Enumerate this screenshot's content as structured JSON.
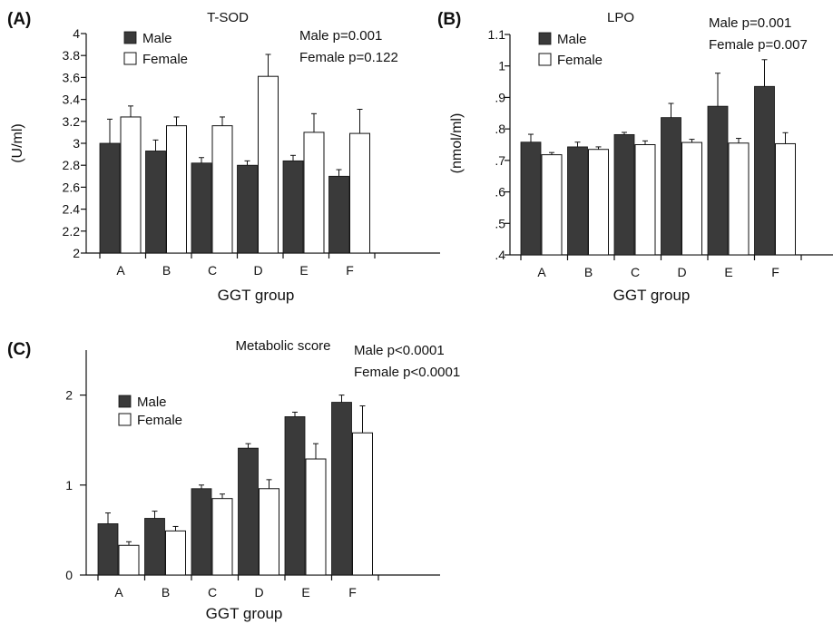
{
  "chart_data": [
    {
      "panel": "(A)",
      "type": "bar",
      "title": "T-SOD",
      "xlabel": "GGT group",
      "ylabel": "(U/ml)",
      "categories": [
        "A",
        "B",
        "C",
        "D",
        "E",
        "F"
      ],
      "ylim": [
        2,
        4
      ],
      "yticks": [
        2,
        2.2,
        2.4,
        2.6,
        2.8,
        3,
        3.2,
        3.4,
        3.6,
        3.8,
        4
      ],
      "ytick_labels": [
        "2",
        "2.2",
        "2.4",
        "2.6",
        "2.8",
        "3",
        "3.2",
        "3.4",
        "3.6",
        "3.8",
        "4"
      ],
      "legend_position": "top-left",
      "annotations": [
        "Male p=0.001",
        "Female p=0.122"
      ],
      "series": [
        {
          "name": "Male",
          "color": "#3a3a3a",
          "values": [
            3.0,
            2.93,
            2.82,
            2.8,
            2.84,
            2.7
          ],
          "errors": [
            0.22,
            0.1,
            0.05,
            0.04,
            0.05,
            0.06
          ]
        },
        {
          "name": "Female",
          "color": "#ffffff",
          "values": [
            3.24,
            3.16,
            3.16,
            3.61,
            3.1,
            3.09
          ],
          "errors": [
            0.1,
            0.08,
            0.08,
            0.2,
            0.17,
            0.22
          ]
        }
      ]
    },
    {
      "panel": "(B)",
      "type": "bar",
      "title": "LPO",
      "xlabel": "GGT group",
      "ylabel": "(nmol/ml)",
      "categories": [
        "A",
        "B",
        "C",
        "D",
        "E",
        "F"
      ],
      "ylim": [
        0.4,
        1.1
      ],
      "yticks": [
        0.4,
        0.5,
        0.6,
        0.7,
        0.8,
        0.9,
        1.0,
        1.1
      ],
      "ytick_labels": [
        ".4",
        ".5",
        ".6",
        ".7",
        ".8",
        ".9",
        "1",
        "1.1"
      ],
      "legend_position": "top-left",
      "annotations": [
        "Male p=0.001",
        "Female p=0.007"
      ],
      "series": [
        {
          "name": "Male",
          "color": "#3a3a3a",
          "values": [
            0.758,
            0.743,
            0.782,
            0.836,
            0.872,
            0.935
          ],
          "errors": [
            0.025,
            0.015,
            0.007,
            0.045,
            0.105,
            0.085
          ]
        },
        {
          "name": "Female",
          "color": "#ffffff",
          "values": [
            0.718,
            0.735,
            0.75,
            0.757,
            0.755,
            0.753
          ],
          "errors": [
            0.007,
            0.008,
            0.012,
            0.01,
            0.015,
            0.035
          ]
        }
      ]
    },
    {
      "panel": "(C)",
      "type": "bar",
      "title": "Metabolic score",
      "xlabel": "GGT group",
      "ylabel": "",
      "categories": [
        "A",
        "B",
        "C",
        "D",
        "E",
        "F"
      ],
      "ylim": [
        0,
        2.5
      ],
      "yticks": [
        0,
        1,
        2
      ],
      "ytick_labels": [
        "0",
        "1",
        "2"
      ],
      "legend_position": "top-left",
      "annotations": [
        "Male p<0.0001",
        "Female p<0.0001"
      ],
      "series": [
        {
          "name": "Male",
          "color": "#3a3a3a",
          "values": [
            0.57,
            0.63,
            0.96,
            1.41,
            1.76,
            1.92
          ],
          "errors": [
            0.12,
            0.08,
            0.04,
            0.05,
            0.05,
            0.08
          ]
        },
        {
          "name": "Female",
          "color": "#ffffff",
          "values": [
            0.33,
            0.49,
            0.85,
            0.96,
            1.29,
            1.58
          ],
          "errors": [
            0.04,
            0.05,
            0.05,
            0.1,
            0.17,
            0.3
          ]
        }
      ]
    }
  ]
}
